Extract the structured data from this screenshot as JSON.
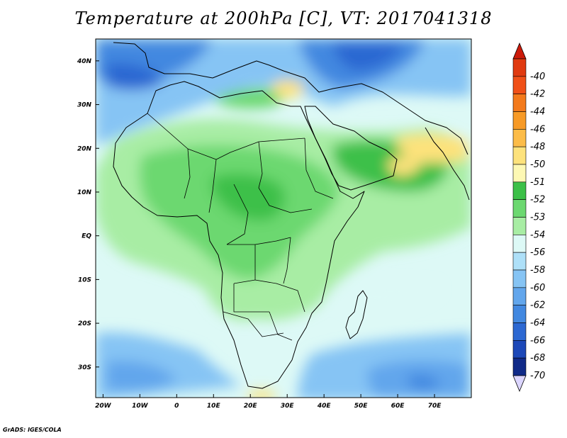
{
  "title": "Temperature at 200hPa [C], VT: 2017041318",
  "footer": "GrADS: IGES/COLA",
  "map": {
    "lon_range": [
      -22,
      80
    ],
    "lat_range": [
      -37,
      45
    ],
    "lon_ticks": [
      {
        "value": -20,
        "label": "20W"
      },
      {
        "value": -10,
        "label": "10W"
      },
      {
        "value": 0,
        "label": "0"
      },
      {
        "value": 10,
        "label": "10E"
      },
      {
        "value": 20,
        "label": "20E"
      },
      {
        "value": 30,
        "label": "30E"
      },
      {
        "value": 40,
        "label": "40E"
      },
      {
        "value": 50,
        "label": "50E"
      },
      {
        "value": 60,
        "label": "60E"
      },
      {
        "value": 70,
        "label": "70E"
      }
    ],
    "lat_ticks": [
      {
        "value": 40,
        "label": "40N"
      },
      {
        "value": 30,
        "label": "30N"
      },
      {
        "value": 20,
        "label": "20N"
      },
      {
        "value": 10,
        "label": "10N"
      },
      {
        "value": 0,
        "label": "EQ"
      },
      {
        "value": -10,
        "label": "10S"
      },
      {
        "value": -20,
        "label": "20S"
      },
      {
        "value": -30,
        "label": "30S"
      }
    ]
  },
  "colorbar": {
    "levels": [
      {
        "label": "-40",
        "color": "#e03a10"
      },
      {
        "label": "-42",
        "color": "#f05018"
      },
      {
        "label": "-44",
        "color": "#f37a1c"
      },
      {
        "label": "-46",
        "color": "#f79a26"
      },
      {
        "label": "-48",
        "color": "#fcbc48"
      },
      {
        "label": "-50",
        "color": "#fde27c"
      },
      {
        "label": "-51",
        "color": "#fdf8b4"
      },
      {
        "label": "-52",
        "color": "#3cc048"
      },
      {
        "label": "-53",
        "color": "#6cd870"
      },
      {
        "label": "-54",
        "color": "#a8eda4"
      },
      {
        "label": "-56",
        "color": "#ddf9f6"
      },
      {
        "label": "-58",
        "color": "#aee0f8"
      },
      {
        "label": "-60",
        "color": "#86c4f4"
      },
      {
        "label": "-62",
        "color": "#62a6ec"
      },
      {
        "label": "-64",
        "color": "#4288e0"
      },
      {
        "label": "-66",
        "color": "#2c68d2"
      },
      {
        "label": "-68",
        "color": "#1c48b8"
      },
      {
        "label": "-70",
        "color": "#102a88"
      }
    ],
    "top_arrow_color": "#cc1a0a",
    "bottom_arrow_color": "#dcd6ff"
  }
}
